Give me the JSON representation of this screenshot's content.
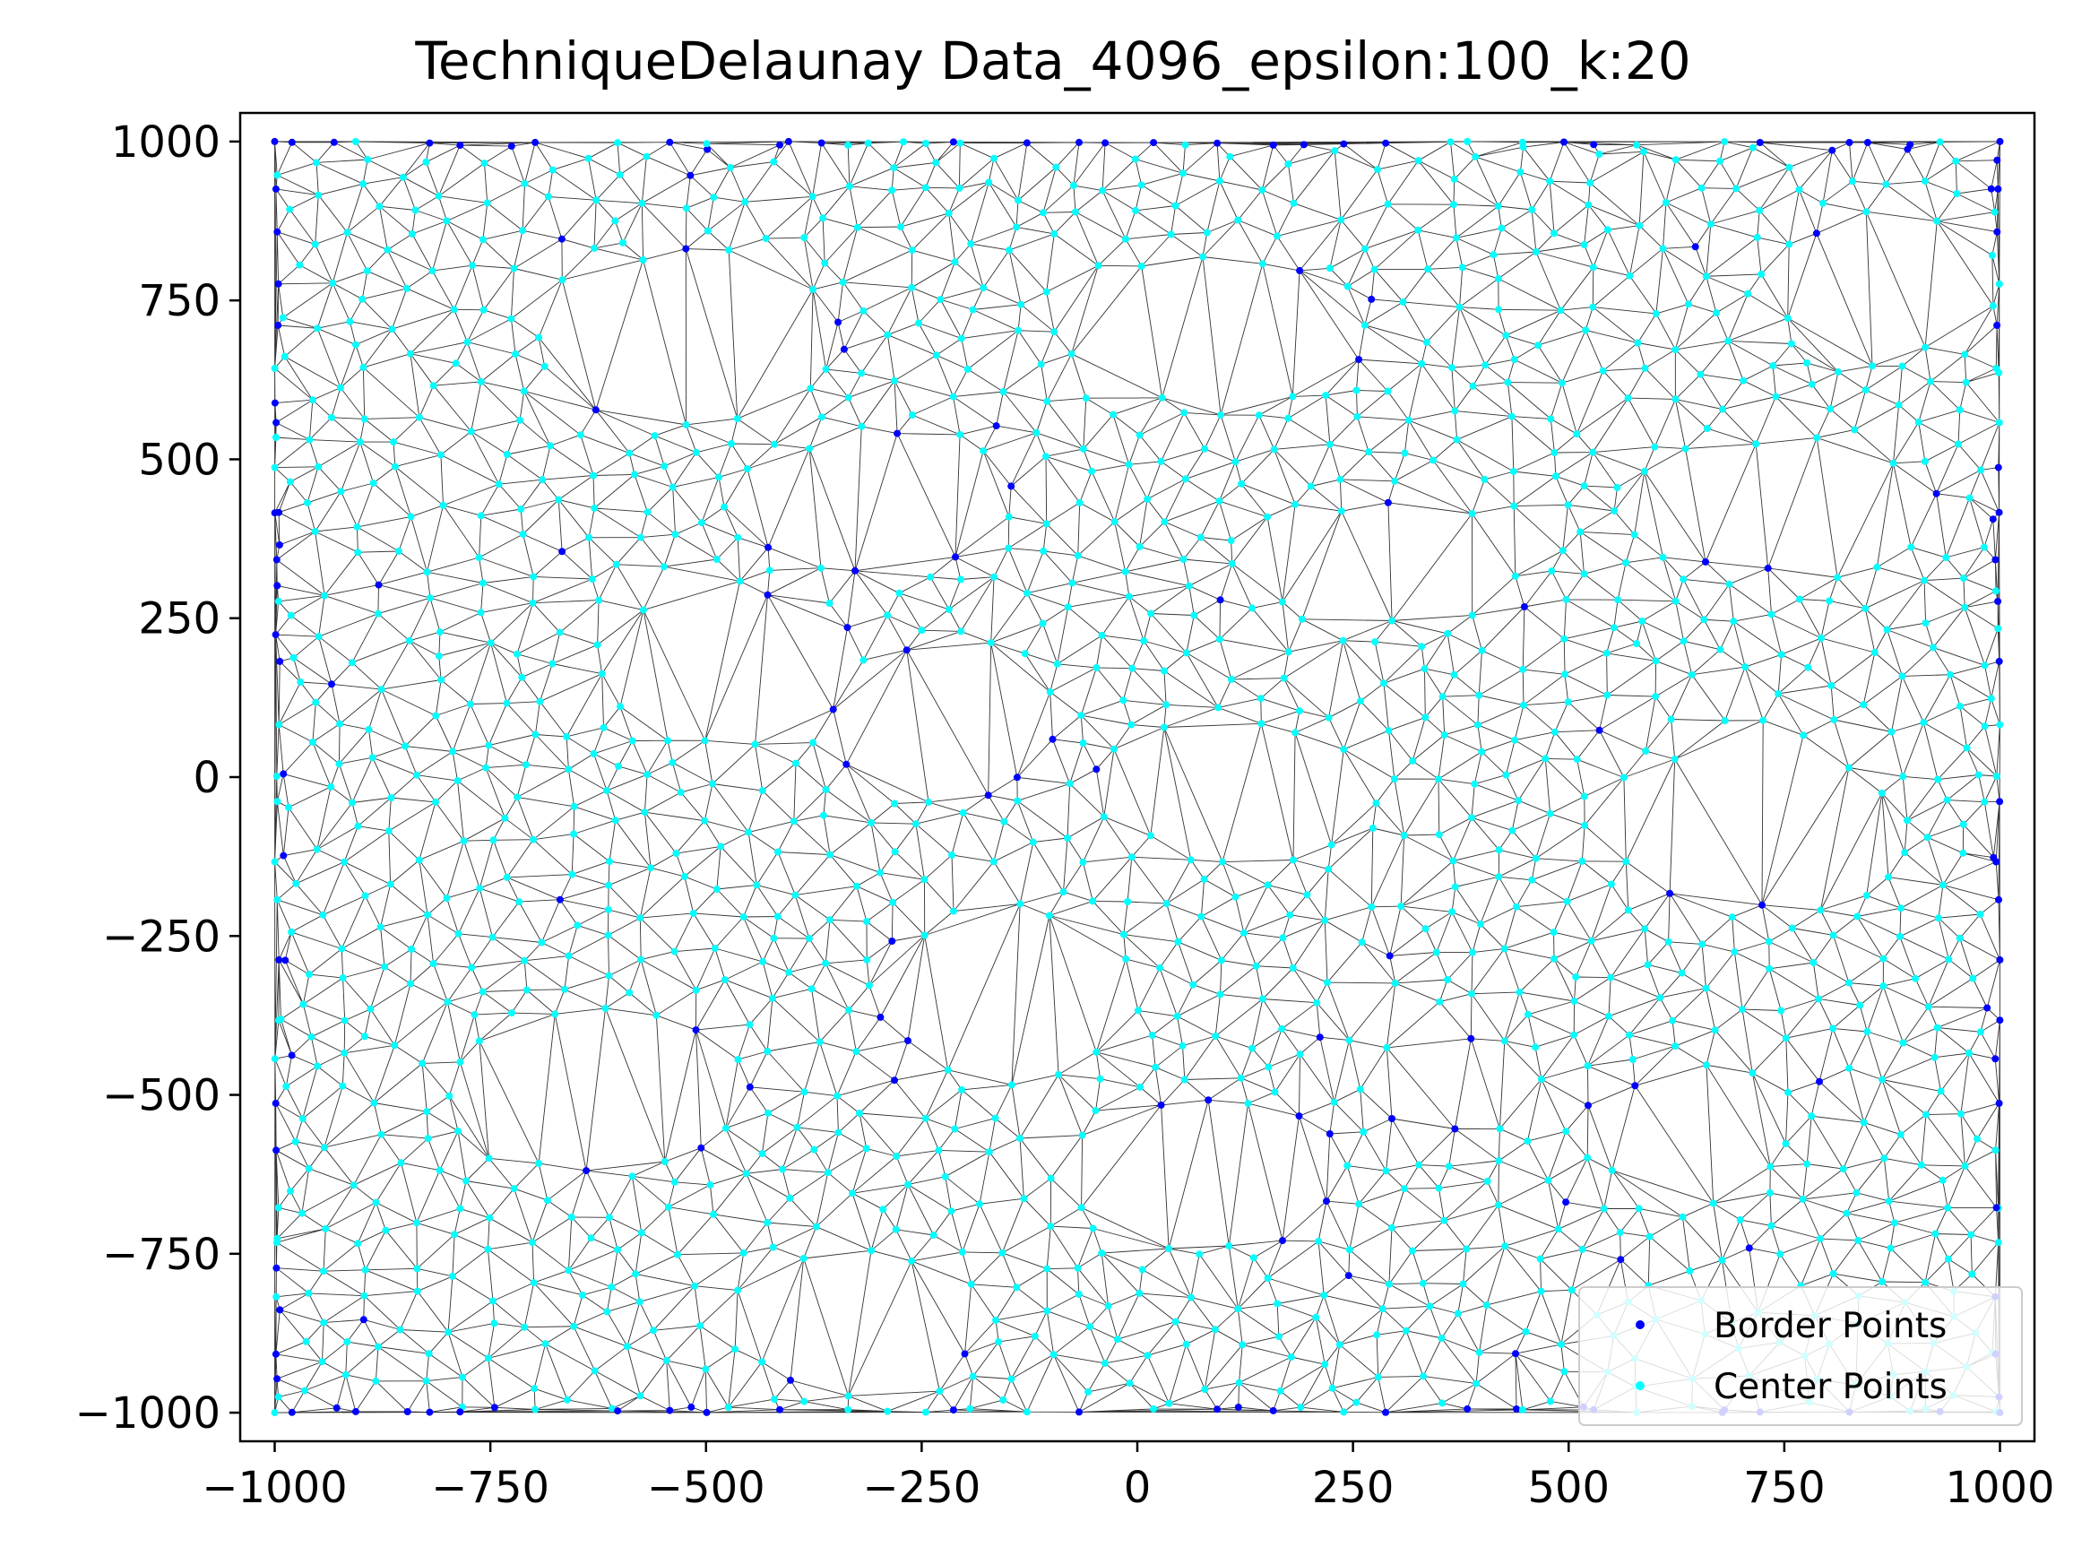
{
  "chart_data": {
    "type": "scatter",
    "title": "TechniqueDelaunay Data_4096_epsilon:100_k:20",
    "xlabel": "",
    "ylabel": "",
    "xlim": [
      -1040,
      1040
    ],
    "ylim": [
      -1045,
      1045
    ],
    "x_ticks": [
      -1000,
      -750,
      -500,
      -250,
      0,
      250,
      500,
      750,
      1000
    ],
    "y_ticks": [
      -1000,
      -750,
      -500,
      -250,
      0,
      250,
      500,
      750,
      1000
    ],
    "x_tick_labels": [
      "−1000",
      "−750",
      "−500",
      "−250",
      "0",
      "250",
      "500",
      "750",
      "1000"
    ],
    "y_tick_labels": [
      "−1000",
      "−750",
      "−500",
      "−250",
      "0",
      "250",
      "500",
      "750",
      "1000"
    ],
    "grid": false,
    "legend_position": "bottom-right",
    "overlay": "delaunay-triangulation",
    "domain_x": [
      -1000,
      1000
    ],
    "domain_y": [
      -1000,
      1000
    ],
    "holes": [
      {
        "cx": -520,
        "cy": 690,
        "rx": 165,
        "ry": 120
      },
      {
        "cx": -300,
        "cy": 430,
        "rx": 150,
        "ry": 100
      },
      {
        "cx": 90,
        "cy": 700,
        "rx": 170,
        "ry": 110
      },
      {
        "cx": 280,
        "cy": 340,
        "rx": 150,
        "ry": 80
      },
      {
        "cx": 760,
        "cy": 420,
        "rx": 170,
        "ry": 90
      },
      {
        "cx": 870,
        "cy": 770,
        "rx": 120,
        "ry": 100
      },
      {
        "cx": -470,
        "cy": 180,
        "rx": 150,
        "ry": 110
      },
      {
        "cx": -220,
        "cy": 90,
        "rx": 120,
        "ry": 110
      },
      {
        "cx": 120,
        "cy": -20,
        "rx": 150,
        "ry": 90
      },
      {
        "cx": 720,
        "cy": -80,
        "rx": 150,
        "ry": 120
      },
      {
        "cx": -150,
        "cy": -340,
        "rx": 140,
        "ry": 120
      },
      {
        "cx": -620,
        "cy": -500,
        "rx": 150,
        "ry": 110
      },
      {
        "cx": 80,
        "cy": -620,
        "rx": 150,
        "ry": 110
      },
      {
        "cx": -320,
        "cy": -860,
        "rx": 120,
        "ry": 110
      },
      {
        "cx": 360,
        "cy": -480,
        "rx": 100,
        "ry": 70
      },
      {
        "cx": 640,
        "cy": -560,
        "rx": 110,
        "ry": 90
      }
    ],
    "series": [
      {
        "name": "Border Points",
        "color": "#0000ff",
        "marker": "dot"
      },
      {
        "name": "Center Points",
        "color": "#00ffff",
        "marker": "dot"
      }
    ]
  }
}
